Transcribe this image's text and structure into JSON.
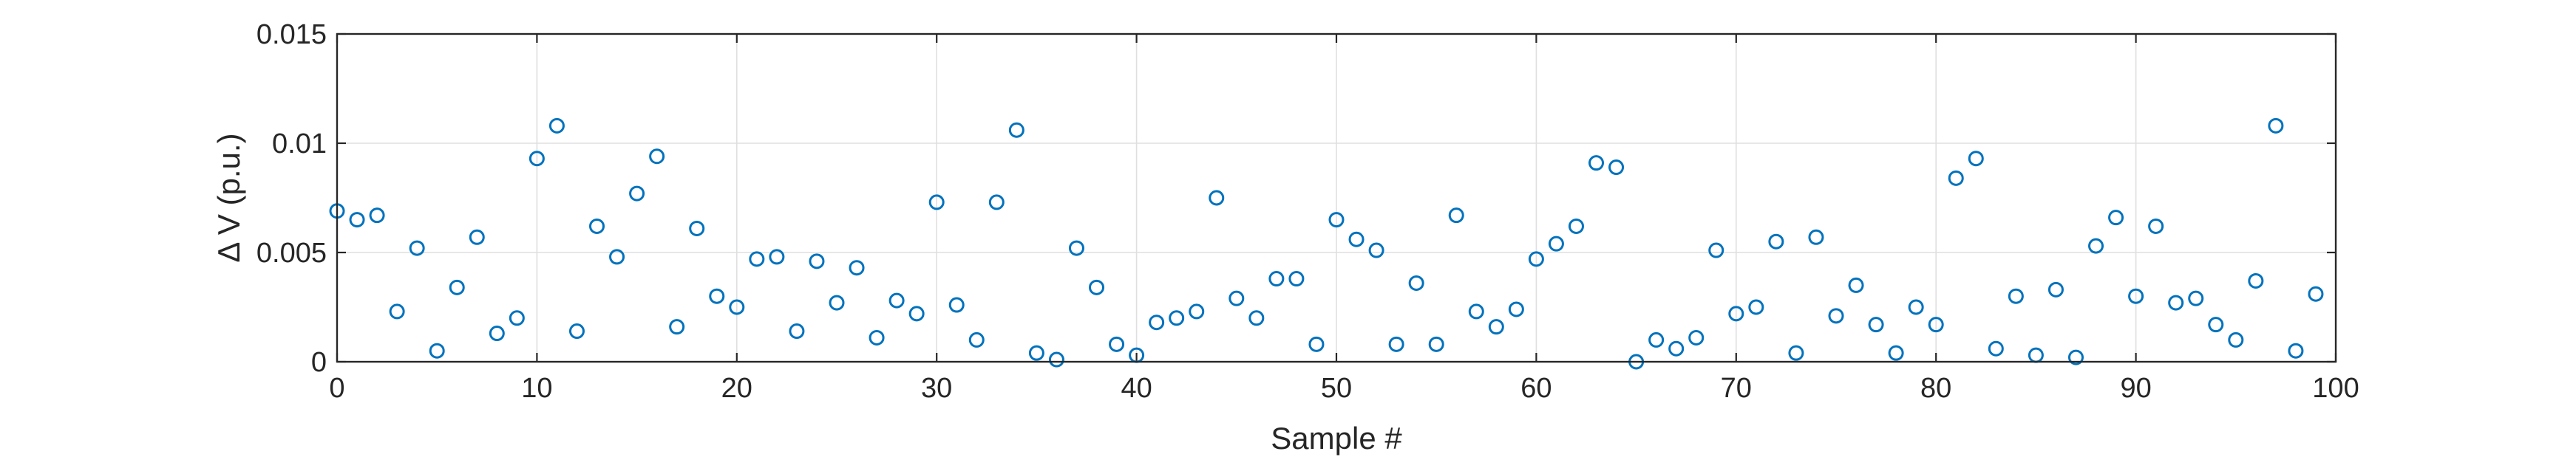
{
  "chart_data": {
    "type": "scatter",
    "title": "",
    "xlabel": "Sample #",
    "ylabel": "Δ V (p.u.)",
    "xlim": [
      0,
      100
    ],
    "ylim": [
      0,
      0.015
    ],
    "xticks": [
      0,
      10,
      20,
      30,
      40,
      50,
      60,
      70,
      80,
      90,
      100
    ],
    "xtick_labels": [
      "0",
      "10",
      "20",
      "30",
      "40",
      "50",
      "60",
      "70",
      "80",
      "90",
      "100"
    ],
    "yticks": [
      0,
      0.005,
      0.01,
      0.015
    ],
    "ytick_labels": [
      "0",
      "0.005",
      "0.01",
      "0.015"
    ],
    "grid": true,
    "marker": "circle-open",
    "color": "#0072BD",
    "x": [
      0,
      1,
      2,
      3,
      4,
      5,
      6,
      7,
      8,
      9,
      10,
      11,
      12,
      13,
      14,
      15,
      16,
      17,
      18,
      19,
      20,
      21,
      22,
      23,
      24,
      25,
      26,
      27,
      28,
      29,
      30,
      31,
      32,
      33,
      34,
      35,
      36,
      37,
      38,
      39,
      40,
      41,
      42,
      43,
      44,
      45,
      46,
      47,
      48,
      49,
      50,
      51,
      52,
      53,
      54,
      55,
      56,
      57,
      58,
      59,
      60,
      61,
      62,
      63,
      64,
      65,
      66,
      67,
      68,
      69,
      70,
      71,
      72,
      73,
      74,
      75,
      76,
      77,
      78,
      79,
      80,
      81,
      82,
      83,
      84,
      85,
      86,
      87,
      88,
      89,
      90,
      91,
      92,
      93,
      94,
      95,
      96,
      97,
      98,
      99
    ],
    "y": [
      0.0069,
      0.0065,
      0.0067,
      0.0023,
      0.0052,
      0.0005,
      0.0034,
      0.0057,
      0.0013,
      0.002,
      0.0093,
      0.0108,
      0.0014,
      0.0062,
      0.0048,
      0.0077,
      0.0094,
      0.0016,
      0.0061,
      0.003,
      0.0025,
      0.0047,
      0.0048,
      0.0014,
      0.0046,
      0.0027,
      0.0043,
      0.0011,
      0.0028,
      0.0022,
      0.0073,
      0.0026,
      0.001,
      0.0073,
      0.0106,
      0.0004,
      0.0001,
      0.0052,
      0.0034,
      0.0008,
      0.0003,
      0.0018,
      0.002,
      0.0023,
      0.0075,
      0.0029,
      0.002,
      0.0038,
      0.0038,
      0.0008,
      0.0065,
      0.0056,
      0.0051,
      0.0008,
      0.0036,
      0.0008,
      0.0067,
      0.0023,
      0.0016,
      0.0024,
      0.0047,
      0.0054,
      0.0062,
      0.0091,
      0.0089,
      0.0,
      0.001,
      0.0006,
      0.0011,
      0.0051,
      0.0022,
      0.0025,
      0.0055,
      0.0004,
      0.0057,
      0.0021,
      0.0035,
      0.0017,
      0.0004,
      0.0025,
      0.0017,
      0.0084,
      0.0093,
      0.0006,
      0.003,
      0.0003,
      0.0033,
      0.0002,
      0.0053,
      0.0066,
      0.003,
      0.0062,
      0.0027,
      0.0029,
      0.0017,
      0.001,
      0.0037,
      0.0108,
      0.0005,
      0.0031
    ]
  }
}
